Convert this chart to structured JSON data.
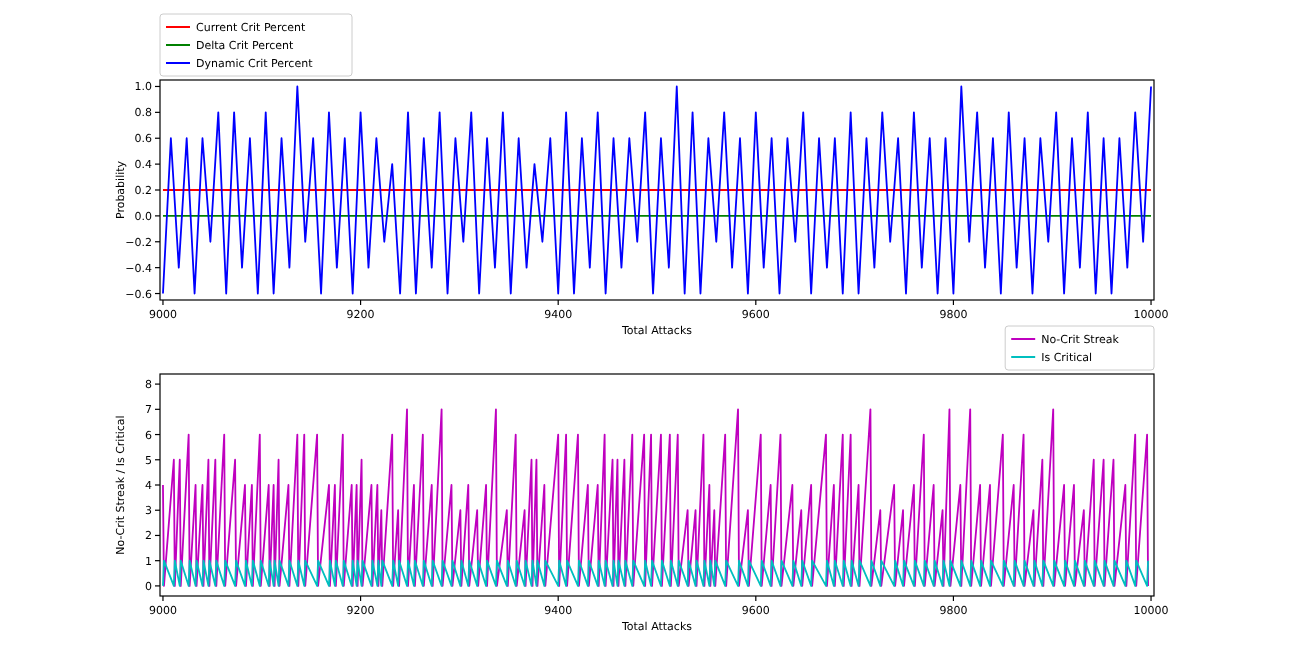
{
  "chart_data": [
    {
      "type": "line",
      "xlabel": "Total Attacks",
      "ylabel": "Probability",
      "xlim": [
        8997,
        10003
      ],
      "xticks": [
        9000,
        9200,
        9400,
        9600,
        9800,
        10000
      ],
      "ylim": [
        -0.65,
        1.05
      ],
      "yticks": [
        {
          "value": -0.6,
          "label": "−0.6"
        },
        {
          "value": -0.4,
          "label": "−0.4"
        },
        {
          "value": -0.2,
          "label": "−0.2"
        },
        {
          "value": 0,
          "label": "0.0"
        },
        0.2,
        0.4,
        0.6,
        0.8,
        {
          "value": 1,
          "label": "1.0"
        }
      ],
      "legend": "top left",
      "series": [
        {
          "name": "Current Crit Percent",
          "color": "#ff0000",
          "x": [
            9000,
            10000
          ],
          "values": [
            0.2,
            0.2
          ]
        },
        {
          "name": "Delta Crit Percent",
          "color": "#008000",
          "x": [
            9000,
            10000
          ],
          "values": [
            0,
            0
          ]
        },
        {
          "name": "Dynamic Crit Percent",
          "color": "#0000ff",
          "x": [
            9000,
            9008,
            9016,
            9024,
            9032,
            9040,
            9048,
            9056,
            9064,
            9072,
            9080,
            9088,
            9096,
            9104,
            9112,
            9120,
            9128,
            9136,
            9144,
            9152,
            9160,
            9168,
            9176,
            9184,
            9192,
            9200,
            9208,
            9216,
            9224,
            9232,
            9240,
            9248,
            9256,
            9264,
            9272,
            9280,
            9288,
            9296,
            9304,
            9312,
            9320,
            9328,
            9336,
            9344,
            9352,
            9360,
            9368,
            9376,
            9384,
            9392,
            9400,
            9408,
            9416,
            9424,
            9432,
            9440,
            9448,
            9456,
            9464,
            9472,
            9480,
            9488,
            9496,
            9504,
            9512,
            9520,
            9528,
            9536,
            9544,
            9552,
            9560,
            9568,
            9576,
            9584,
            9592,
            9600,
            9608,
            9616,
            9624,
            9632,
            9640,
            9648,
            9656,
            9664,
            9672,
            9680,
            9688,
            9696,
            9704,
            9712,
            9720,
            9728,
            9736,
            9744,
            9752,
            9760,
            9768,
            9776,
            9784,
            9792,
            9800,
            9808,
            9816,
            9824,
            9832,
            9840,
            9848,
            9856,
            9864,
            9872,
            9880,
            9888,
            9896,
            9904,
            9912,
            9920,
            9928,
            9936,
            9944,
            9952,
            9960,
            9968,
            9976,
            9984,
            9992,
            10000
          ],
          "values": [
            -0.6,
            0.6,
            -0.4,
            0.6,
            -0.6,
            0.6,
            -0.2,
            0.8,
            -0.6,
            0.8,
            -0.4,
            0.6,
            -0.6,
            0.8,
            -0.6,
            0.6,
            -0.4,
            1.0,
            -0.2,
            0.6,
            -0.6,
            0.8,
            -0.4,
            0.6,
            -0.6,
            0.8,
            -0.4,
            0.6,
            -0.2,
            0.4,
            -0.6,
            0.8,
            -0.6,
            0.6,
            -0.4,
            0.8,
            -0.6,
            0.6,
            -0.2,
            0.8,
            -0.6,
            0.6,
            -0.4,
            0.8,
            -0.6,
            0.6,
            -0.4,
            0.4,
            -0.2,
            0.6,
            -0.6,
            0.8,
            -0.6,
            0.6,
            -0.4,
            0.8,
            -0.6,
            0.6,
            -0.4,
            0.6,
            -0.2,
            0.8,
            -0.6,
            0.6,
            -0.4,
            1.0,
            -0.6,
            0.8,
            -0.6,
            0.6,
            -0.2,
            0.8,
            -0.4,
            0.6,
            -0.6,
            0.8,
            -0.4,
            0.6,
            -0.6,
            0.6,
            -0.2,
            0.8,
            -0.6,
            0.6,
            -0.4,
            0.6,
            -0.6,
            0.8,
            -0.6,
            0.6,
            -0.4,
            0.8,
            -0.2,
            0.6,
            -0.6,
            0.8,
            -0.4,
            0.6,
            -0.6,
            0.6,
            -0.6,
            1.0,
            -0.2,
            0.8,
            -0.4,
            0.6,
            -0.6,
            0.8,
            -0.4,
            0.6,
            -0.6,
            0.6,
            -0.2,
            0.8,
            -0.6,
            0.6,
            -0.4,
            0.8,
            -0.6,
            0.6,
            -0.6,
            0.6,
            -0.4,
            0.8,
            -0.2,
            1.0
          ]
        }
      ]
    },
    {
      "type": "line",
      "xlabel": "Total Attacks",
      "ylabel": "No-Crit Streak / Is Critical",
      "xlim": [
        8997,
        10003
      ],
      "xticks": [
        9000,
        9200,
        9400,
        9600,
        9800,
        10000
      ],
      "ylim": [
        -0.4,
        8.4
      ],
      "yticks": [
        0,
        1,
        2,
        3,
        4,
        5,
        6,
        7,
        8
      ],
      "legend": "top right",
      "x": [
        9000,
        9001,
        9011,
        9012,
        9017,
        9018,
        9026,
        9027,
        9033,
        9034,
        9040,
        9041,
        9046,
        9047,
        9053,
        9054,
        9062,
        9063,
        9073,
        9074,
        9083,
        9084,
        9090,
        9091,
        9098,
        9099,
        9107,
        9108,
        9112,
        9113,
        9117,
        9118,
        9127,
        9128,
        9136,
        9137,
        9143,
        9144,
        9156,
        9157,
        9168,
        9169,
        9174,
        9175,
        9182,
        9183,
        9191,
        9192,
        9196,
        9197,
        9201,
        9202,
        9211,
        9212,
        9217,
        9218,
        9221,
        9222,
        9232,
        9233,
        9238,
        9239,
        9247,
        9248,
        9254,
        9255,
        9263,
        9264,
        9272,
        9273,
        9282,
        9283,
        9292,
        9293,
        9301,
        9302,
        9309,
        9310,
        9318,
        9319,
        9327,
        9328,
        9337,
        9338,
        9348,
        9349,
        9357,
        9358,
        9366,
        9367,
        9373,
        9374,
        9378,
        9379,
        9386,
        9387,
        9400,
        9401,
        9408,
        9409,
        9420,
        9421,
        9430,
        9431,
        9440,
        9441,
        9447,
        9448,
        9455,
        9456,
        9460,
        9461,
        9467,
        9468,
        9475,
        9476,
        9487,
        9488,
        9494,
        9495,
        9504,
        9505,
        9513,
        9514,
        9521,
        9522,
        9531,
        9532,
        9539,
        9540,
        9547,
        9548,
        9553,
        9554,
        9558,
        9559,
        9569,
        9570,
        9582,
        9583,
        9592,
        9593,
        9605,
        9606,
        9615,
        9616,
        9625,
        9626,
        9637,
        9638,
        9646,
        9647,
        9656,
        9657,
        9671,
        9672,
        9679,
        9680,
        9688,
        9689,
        9696,
        9697,
        9704,
        9705,
        9716,
        9717,
        9726,
        9727,
        9740,
        9741,
        9749,
        9750,
        9760,
        9761,
        9770,
        9771,
        9780,
        9781,
        9789,
        9790,
        9796,
        9797,
        9807,
        9808,
        9817,
        9818,
        9827,
        9828,
        9837,
        9838,
        9850,
        9851,
        9861,
        9862,
        9871,
        9872,
        9881,
        9882,
        9890,
        9891,
        9901,
        9902,
        9912,
        9913,
        9922,
        9923,
        9932,
        9933,
        9942,
        9943,
        9952,
        9953,
        9962,
        9963,
        9974,
        9975,
        9984,
        9985,
        9996,
        9997
      ],
      "series": [
        {
          "name": "No-Crit Streak",
          "color": "#bf00bf",
          "values": [
            4,
            0,
            5,
            0,
            5,
            0,
            6,
            0,
            4,
            0,
            4,
            0,
            5,
            0,
            5,
            0,
            6,
            0,
            5,
            0,
            4,
            0,
            4,
            0,
            6,
            0,
            4,
            0,
            4,
            0,
            5,
            0,
            4,
            0,
            6,
            0,
            6,
            0,
            6,
            0,
            4,
            0,
            4,
            0,
            6,
            0,
            4,
            0,
            4,
            0,
            5,
            0,
            4,
            0,
            4,
            0,
            3,
            0,
            6,
            0,
            3,
            0,
            7,
            0,
            4,
            0,
            6,
            0,
            4,
            0,
            7,
            0,
            4,
            0,
            3,
            0,
            4,
            0,
            3,
            0,
            4,
            0,
            7,
            0,
            3,
            0,
            6,
            0,
            3,
            0,
            5,
            0,
            5,
            0,
            4,
            0,
            6,
            0,
            6,
            0,
            6,
            0,
            4,
            0,
            4,
            0,
            6,
            0,
            5,
            0,
            5,
            0,
            5,
            0,
            6,
            0,
            6,
            0,
            6,
            0,
            6,
            0,
            6,
            0,
            6,
            0,
            3,
            0,
            3,
            0,
            6,
            0,
            4,
            0,
            3,
            0,
            6,
            0,
            7,
            0,
            3,
            0,
            6,
            0,
            4,
            0,
            6,
            0,
            4,
            0,
            3,
            0,
            4,
            0,
            6,
            0,
            4,
            0,
            6,
            0,
            6,
            0,
            4,
            0,
            7,
            0,
            3,
            0,
            4,
            0,
            3,
            0,
            4,
            0,
            6,
            0,
            4,
            0,
            3,
            0,
            7,
            0,
            4,
            0,
            7,
            0,
            4,
            0,
            4,
            0,
            6,
            0,
            4,
            0,
            6,
            0,
            3,
            0,
            5,
            0,
            7,
            0,
            4,
            0,
            4,
            0,
            3,
            0,
            5,
            0,
            5,
            0,
            5,
            0,
            4,
            0,
            6,
            0,
            6,
            0
          ]
        },
        {
          "name": "Is Critical",
          "color": "#00bfbf",
          "values": [
            0,
            1,
            0,
            1,
            0,
            1,
            0,
            1,
            0,
            1,
            0,
            1,
            0,
            1,
            0,
            1,
            0,
            1,
            0,
            1,
            0,
            1,
            0,
            1,
            0,
            1,
            0,
            1,
            0,
            1,
            0,
            1,
            0,
            1,
            0,
            1,
            0,
            1,
            0,
            1,
            0,
            1,
            0,
            1,
            0,
            1,
            0,
            1,
            0,
            1,
            0,
            1,
            0,
            1,
            0,
            1,
            0,
            1,
            0,
            1,
            0,
            1,
            0,
            1,
            0,
            1,
            0,
            1,
            0,
            1,
            0,
            1,
            0,
            1,
            0,
            1,
            0,
            1,
            0,
            1,
            0,
            1,
            0,
            1,
            0,
            1,
            0,
            1,
            0,
            1,
            0,
            1,
            0,
            1,
            0,
            1,
            0,
            1,
            0,
            1,
            0,
            1,
            0,
            1,
            0,
            1,
            0,
            1,
            0,
            1,
            0,
            1,
            0,
            1,
            0,
            1,
            0,
            1,
            0,
            1,
            0,
            1,
            0,
            1,
            0,
            1,
            0,
            1,
            0,
            1,
            0,
            1,
            0,
            1,
            0,
            1,
            0,
            1,
            0,
            1,
            0,
            1,
            0,
            1,
            0,
            1,
            0,
            1,
            0,
            1,
            0,
            1,
            0,
            1,
            0,
            1,
            0,
            1,
            0,
            1,
            0,
            1,
            0,
            1,
            0,
            1,
            0,
            1,
            0,
            1,
            0,
            1,
            0,
            1,
            0,
            1,
            0,
            1,
            0,
            1,
            0,
            1,
            0,
            1,
            0,
            1,
            0,
            1,
            0,
            1,
            0,
            1,
            0,
            1,
            0,
            1,
            0,
            1,
            0,
            1,
            0,
            1,
            0,
            1,
            0,
            1,
            0,
            1,
            0,
            1,
            0,
            1,
            0,
            1,
            0,
            1,
            0,
            1,
            0,
            1
          ]
        }
      ]
    }
  ]
}
